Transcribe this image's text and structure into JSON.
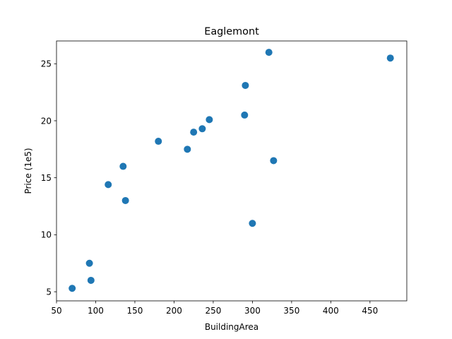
{
  "chart_data": {
    "type": "scatter",
    "title": "Eaglemont",
    "xlabel": "BuildingArea",
    "ylabel": "Price (1e5)",
    "xlim": [
      50,
      497
    ],
    "ylim": [
      4.2,
      27.0
    ],
    "xticks": [
      50,
      100,
      150,
      200,
      250,
      300,
      350,
      400,
      450
    ],
    "xtick_labels": [
      "50",
      "100",
      "150",
      "200",
      "250",
      "300",
      "350",
      "400",
      "450"
    ],
    "yticks": [
      5,
      10,
      15,
      20,
      25
    ],
    "ytick_labels": [
      "5",
      "10",
      "15",
      "20",
      "25"
    ],
    "grid": false,
    "legend": "none",
    "marker_color": "#1f77b4",
    "points": [
      {
        "x": 70,
        "y": 5.3
      },
      {
        "x": 92,
        "y": 7.5
      },
      {
        "x": 94,
        "y": 6.0
      },
      {
        "x": 116,
        "y": 14.4
      },
      {
        "x": 135,
        "y": 16.0
      },
      {
        "x": 138,
        "y": 13.0
      },
      {
        "x": 180,
        "y": 18.2
      },
      {
        "x": 217,
        "y": 17.5
      },
      {
        "x": 225,
        "y": 19.0
      },
      {
        "x": 236,
        "y": 19.3
      },
      {
        "x": 245,
        "y": 20.1
      },
      {
        "x": 290,
        "y": 20.5
      },
      {
        "x": 291,
        "y": 23.1
      },
      {
        "x": 300,
        "y": 11.0
      },
      {
        "x": 321,
        "y": 26.0
      },
      {
        "x": 327,
        "y": 16.5
      },
      {
        "x": 476,
        "y": 25.5
      }
    ]
  }
}
